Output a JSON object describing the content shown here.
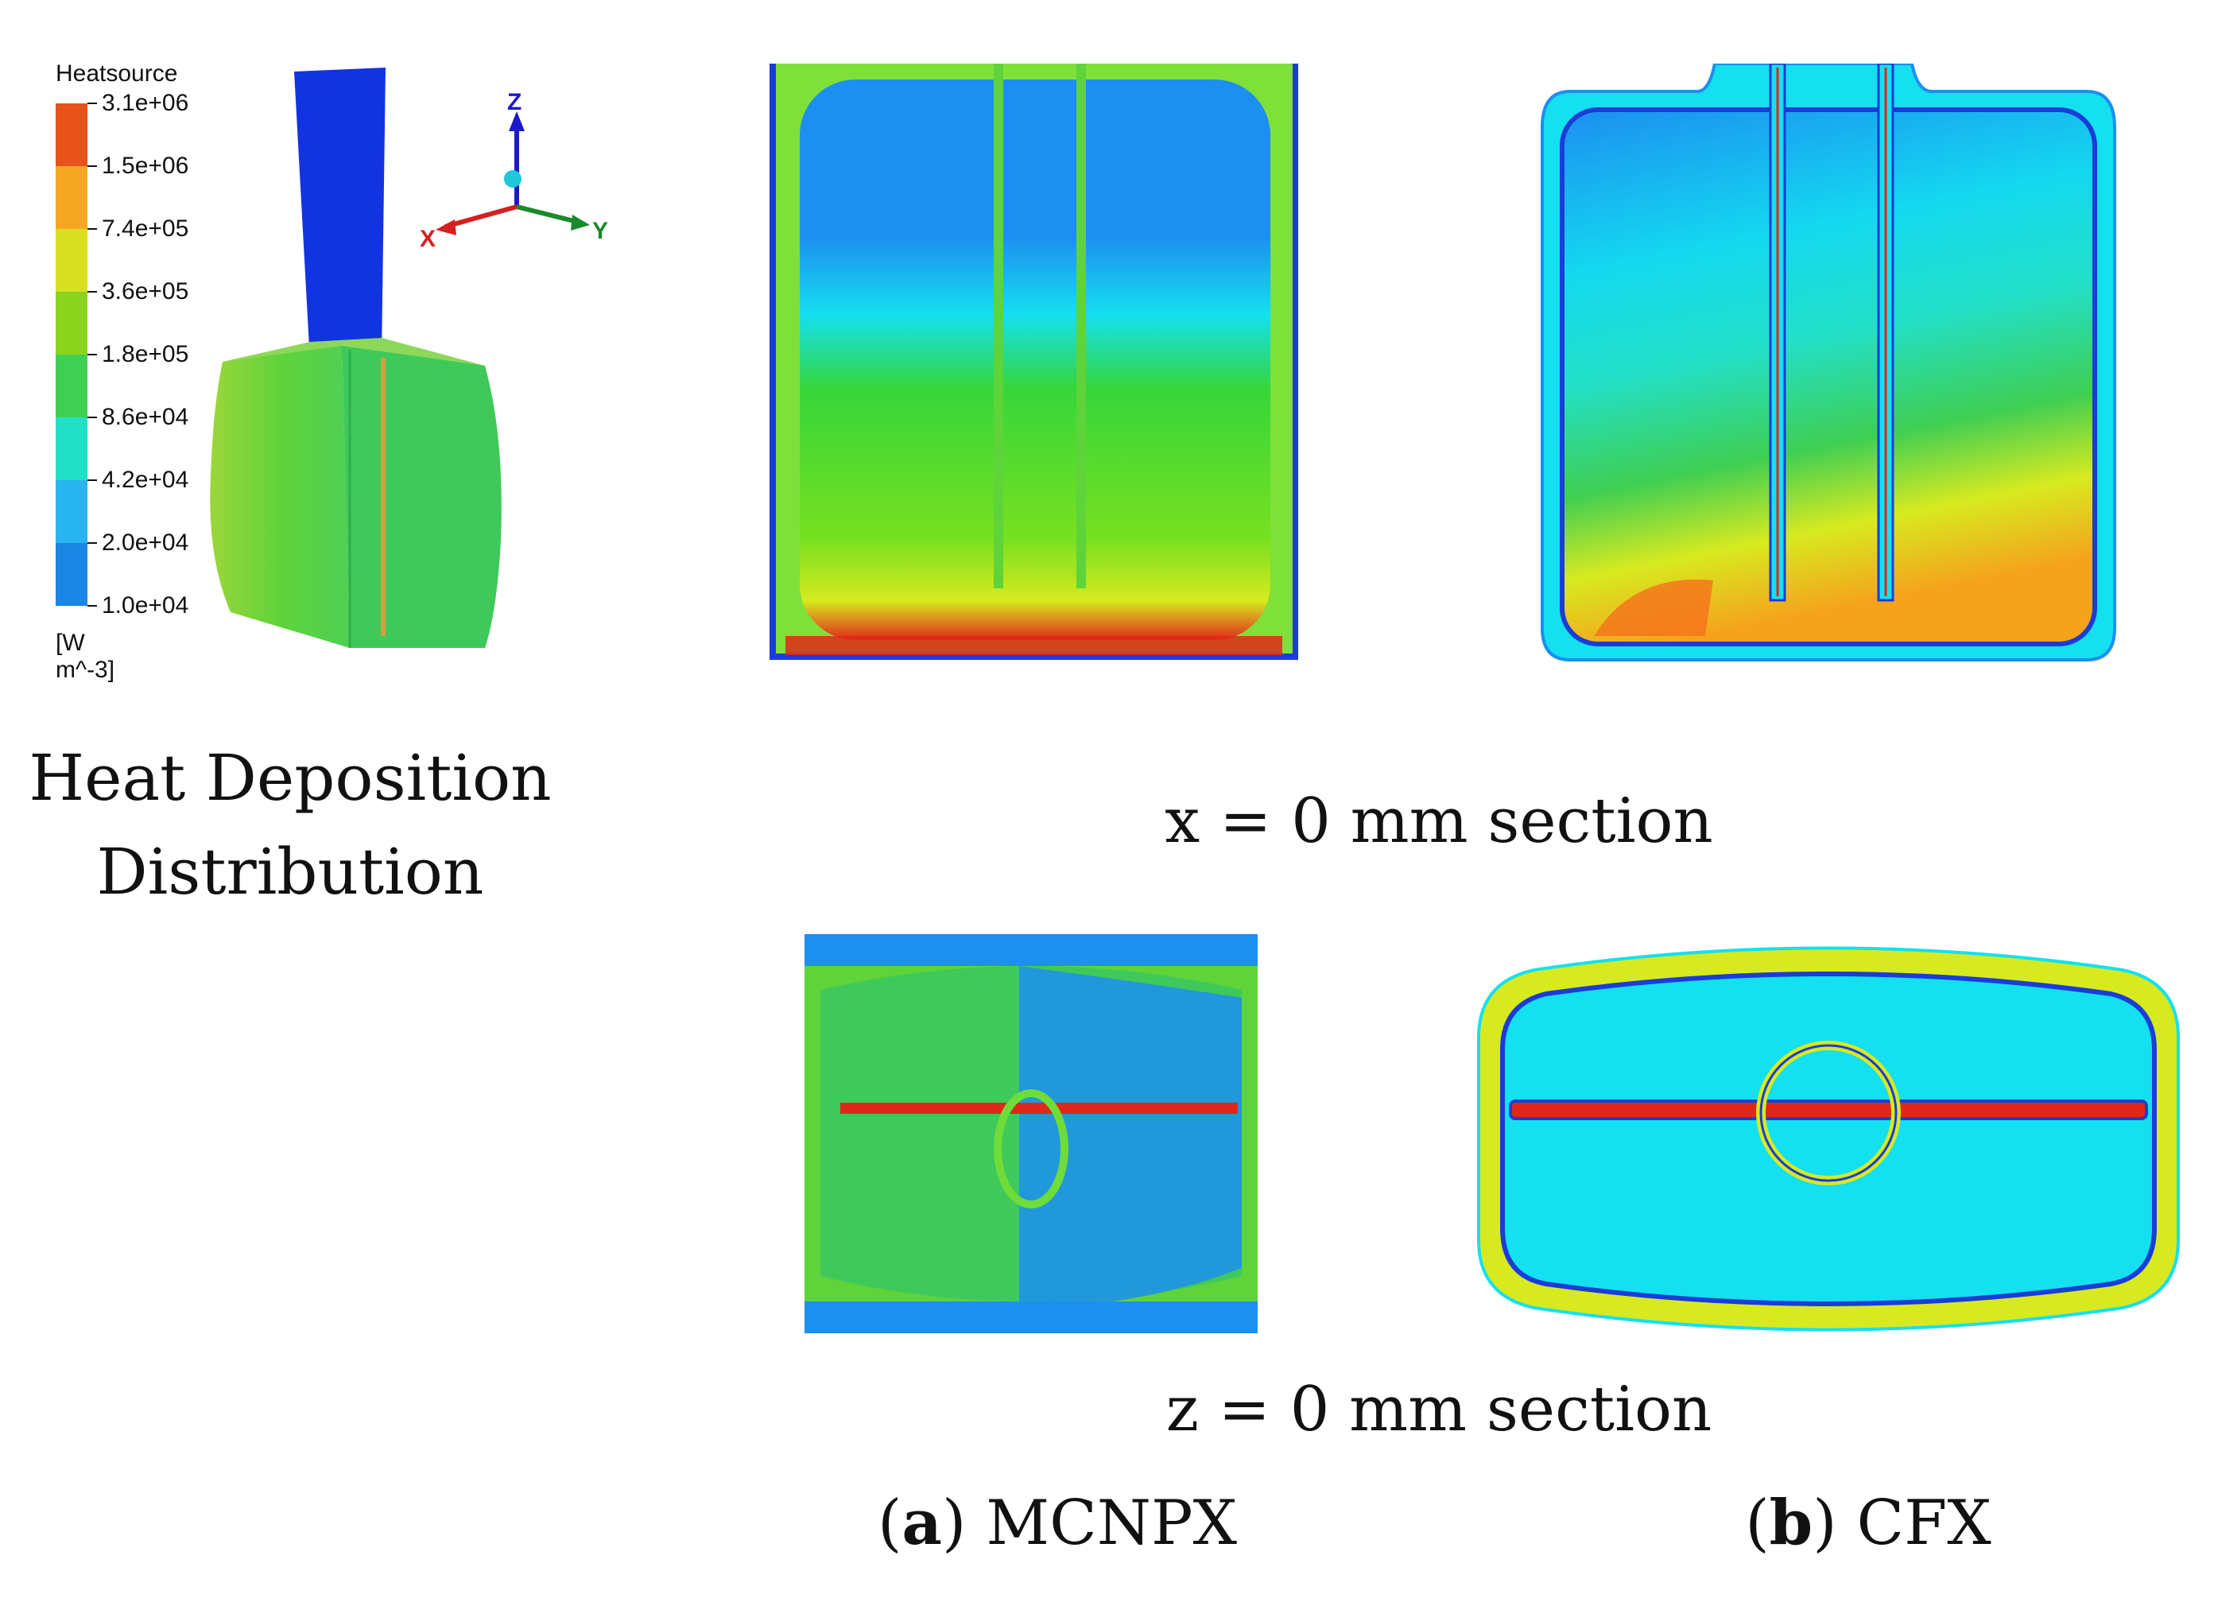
{
  "legend": {
    "title": "Heatsource",
    "ticks": [
      "3.1e+06",
      "1.5e+06",
      "7.4e+05",
      "3.6e+05",
      "1.8e+05",
      "8.6e+04",
      "4.2e+04",
      "2.0e+04",
      "1.0e+04"
    ],
    "unit": "[W m^-3]",
    "colors": [
      "#e8531c",
      "#f5a623",
      "#d9e021",
      "#8bd31c",
      "#3fcf52",
      "#22e0c8",
      "#27b4ef",
      "#1a86e6",
      "#0a2fe0"
    ]
  },
  "axes": {
    "z": "Z",
    "x": "X",
    "y": "Y"
  },
  "heat_caption": {
    "line1": "Heat Deposition",
    "line2": "Distribution"
  },
  "section_x_caption": "x = 0 mm section",
  "section_z_caption": "z = 0 mm section",
  "label_a": {
    "letter": "a",
    "name": "MCNPX"
  },
  "label_b": {
    "letter": "b",
    "name": "CFX"
  },
  "colors": {
    "blue_dark": "#1a3cd8",
    "blue": "#1c8ff0",
    "cyan": "#14e0f0",
    "green": "#35d63a",
    "yellow": "#d7ea1f",
    "orange": "#f5a21c",
    "red": "#e0281a"
  }
}
